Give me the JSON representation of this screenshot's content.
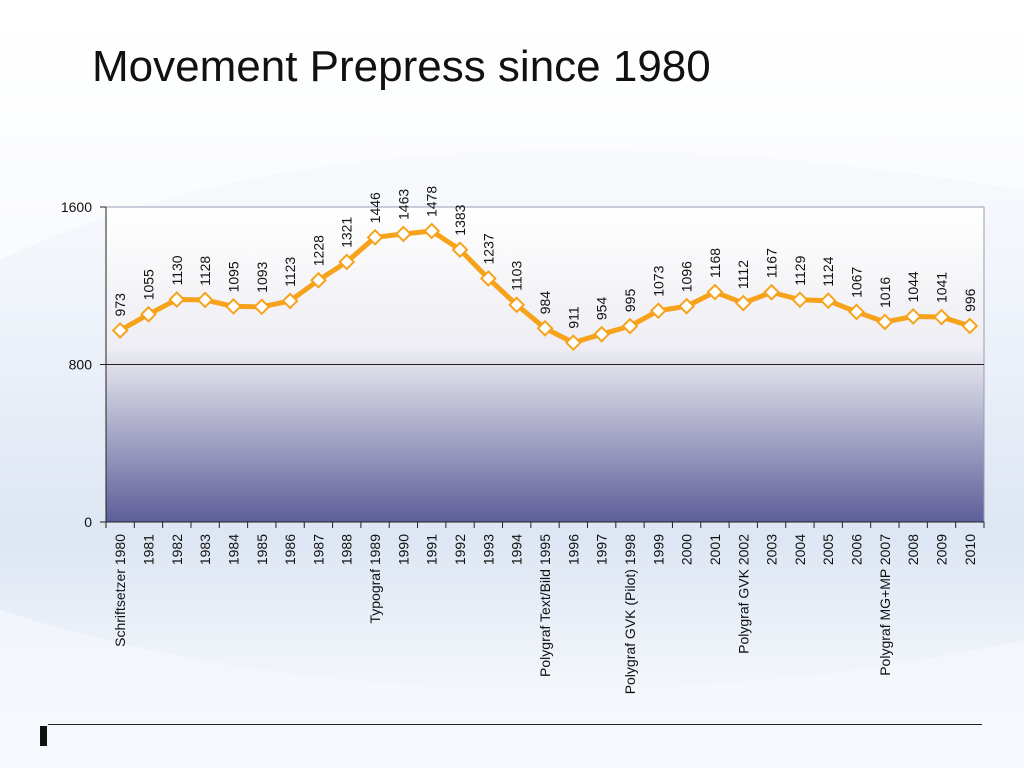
{
  "slide": {
    "title": "Movement Prepress since 1980"
  },
  "colors": {
    "line": "#f7a21b",
    "marker_fill": "#ffffff",
    "plot_top": "#ffffff",
    "plot_bottom": "#5e5e9a",
    "text": "#111111"
  },
  "chart_data": {
    "type": "line",
    "title": "",
    "xlabel": "",
    "ylabel": "",
    "ylim": [
      0,
      1600
    ],
    "yticks": [
      0,
      800,
      1600
    ],
    "grid": "horizontal line at 800",
    "legend": "none",
    "marker": "diamond",
    "data_labels": true,
    "categories": [
      "Schriftsetzer 1980",
      "1981",
      "1982",
      "1983",
      "1984",
      "1985",
      "1986",
      "1987",
      "1988",
      "Typograf 1989",
      "1990",
      "1991",
      "1992",
      "1993",
      "1994",
      "Polygraf Text/Bild 1995",
      "1996",
      "1997",
      "Polygraf GVK (Pilot) 1998",
      "1999",
      "2000",
      "2001",
      "Polygraf GVK 2002",
      "2003",
      "2004",
      "2005",
      "2006",
      "Polygraf MG+MP 2007",
      "2008",
      "2009",
      "2010"
    ],
    "values": [
      973,
      1055,
      1130,
      1128,
      1095,
      1093,
      1123,
      1228,
      1321,
      1446,
      1463,
      1478,
      1383,
      1237,
      1103,
      984,
      911,
      954,
      995,
      1073,
      1096,
      1168,
      1112,
      1167,
      1129,
      1124,
      1067,
      1016,
      1044,
      1041,
      996
    ]
  }
}
